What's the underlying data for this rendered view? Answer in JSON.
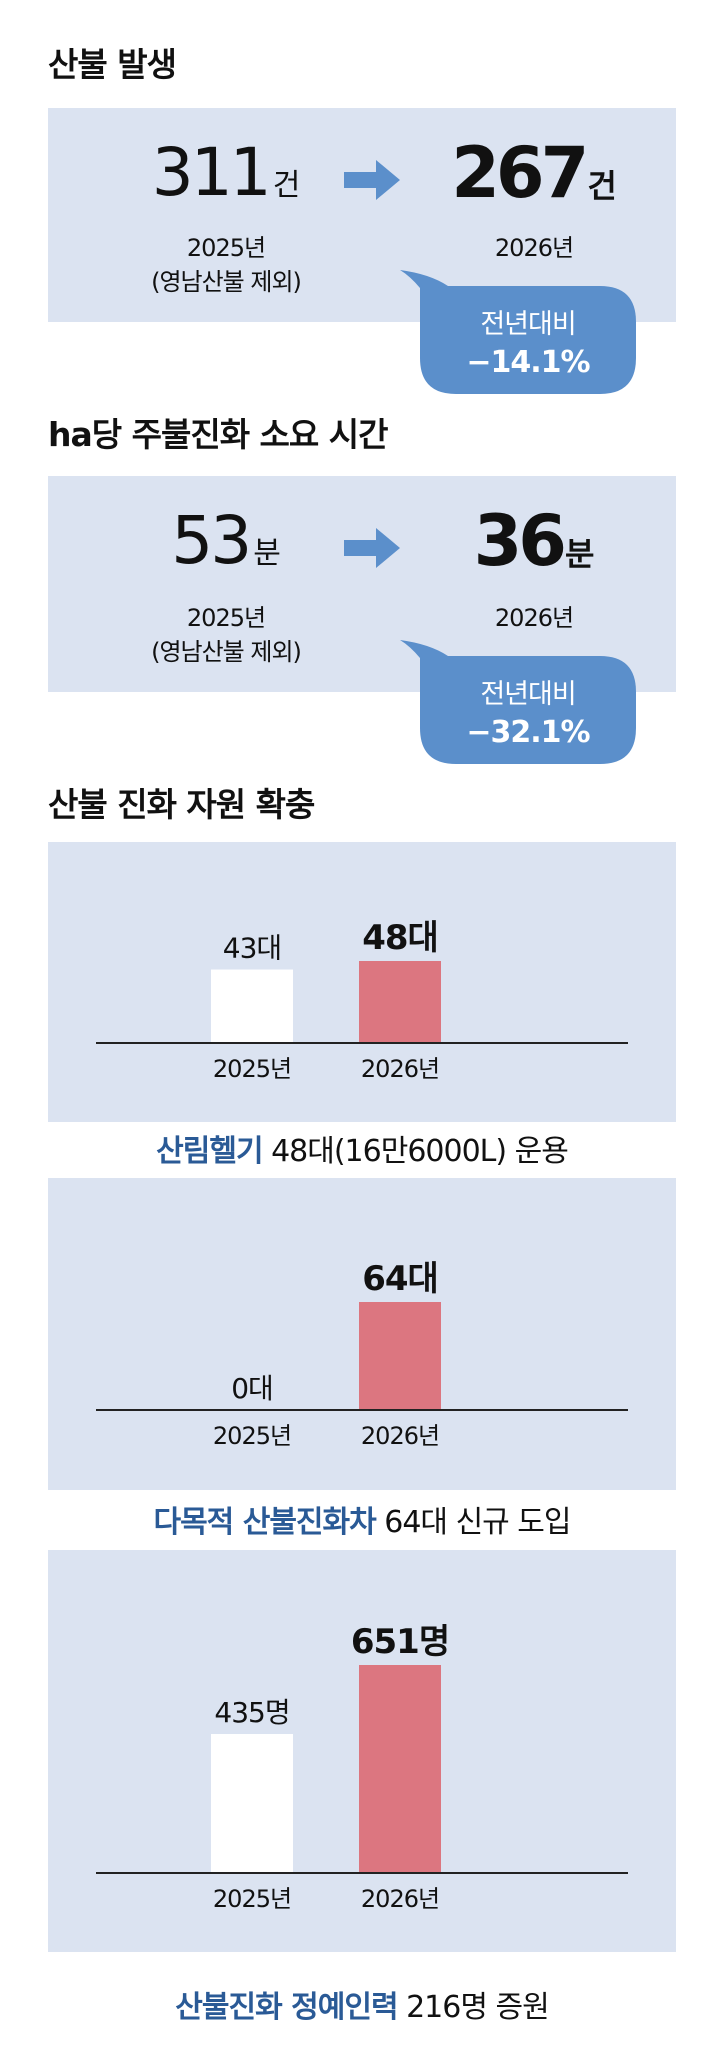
{
  "sections": [
    {
      "title": "산불 발생",
      "before": {
        "value": "311",
        "unit": "건",
        "year": "2025년",
        "note": "(영남산불 제외)"
      },
      "after": {
        "value": "267",
        "unit": "건",
        "year": "2026년"
      },
      "change": {
        "label": "전년대비",
        "value": "−14.1%"
      }
    },
    {
      "title": "ha당 주불진화 소요 시간",
      "before": {
        "value": "53",
        "unit": "분",
        "year": "2025년",
        "note": "(영남산불 제외)"
      },
      "after": {
        "value": "36",
        "unit": "분",
        "year": "2026년"
      },
      "change": {
        "label": "전년대비",
        "value": "−32.1%"
      }
    }
  ],
  "resources_title": "산불 진화 자원 확충",
  "colors": {
    "panel": "#dbe3f1",
    "bar_before": "#ffffff",
    "bar_after": "#dc7680",
    "highlight": "#2a5a96",
    "bubble": "#5b8fcb"
  },
  "chart_data": [
    {
      "type": "bar",
      "categories": [
        "2025년",
        "2026년"
      ],
      "values": [
        43,
        48
      ],
      "value_labels": [
        "43대",
        "48대"
      ],
      "unit": "대",
      "caption_highlight": "산림헬기",
      "caption_rest": " 48대(16만6000L) 운용"
    },
    {
      "type": "bar",
      "categories": [
        "2025년",
        "2026년"
      ],
      "values": [
        0,
        64
      ],
      "value_labels": [
        "0대",
        "64대"
      ],
      "unit": "대",
      "caption_highlight": "다목적 산불진화차",
      "caption_rest": " 64대 신규 도입"
    },
    {
      "type": "bar",
      "categories": [
        "2025년",
        "2026년"
      ],
      "values": [
        435,
        651
      ],
      "value_labels": [
        "435명",
        "651명"
      ],
      "unit": "명",
      "caption_highlight": "산불진화 정예인력",
      "caption_rest": " 216명 증원"
    }
  ]
}
